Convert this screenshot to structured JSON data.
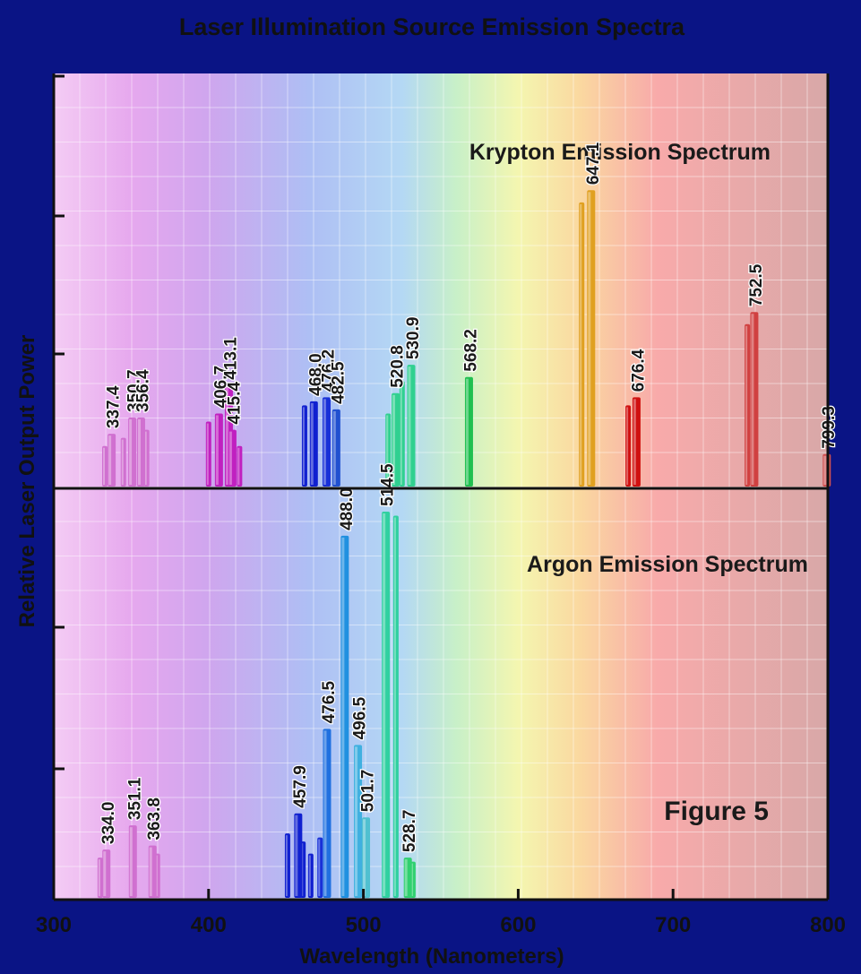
{
  "chart_data": {
    "type": "bar",
    "title": "Laser Illumination Source Emission Spectra",
    "xlabel": "Wavelength (Nanometers)",
    "ylabel": "Relative Laser Output Power",
    "xlim": [
      300,
      800
    ],
    "xticks": [
      "300",
      "400",
      "500",
      "600",
      "700",
      "800"
    ],
    "annotation": "Figure 5",
    "ylim": [
      0,
      1
    ],
    "panels": [
      {
        "name": "Krypton Emission Spectrum",
        "lines": [
          {
            "wavelength": 337.4,
            "label": "337.4",
            "power": 0.13,
            "color": "#d070d0"
          },
          {
            "wavelength": 350.7,
            "label": "350.7",
            "power": 0.17,
            "color": "#d070d0"
          },
          {
            "wavelength": 356.4,
            "label": "356.4",
            "power": 0.17,
            "color": "#d070d0"
          },
          {
            "wavelength": 406.7,
            "label": "406.7",
            "power": 0.18,
            "color": "#c020c0"
          },
          {
            "wavelength": 413.1,
            "label": "413.1",
            "power": 0.25,
            "color": "#c020c0"
          },
          {
            "wavelength": 415.4,
            "label": "415.4",
            "power": 0.14,
            "color": "#c020c0"
          },
          {
            "wavelength": 468.0,
            "label": "468.0",
            "power": 0.21,
            "color": "#1020d0"
          },
          {
            "wavelength": 476.2,
            "label": "476.2",
            "power": 0.22,
            "color": "#1830d8"
          },
          {
            "wavelength": 482.5,
            "label": "482.5",
            "power": 0.19,
            "color": "#2050d0"
          },
          {
            "wavelength": 520.8,
            "label": "520.8",
            "power": 0.23,
            "color": "#30d090"
          },
          {
            "wavelength": 530.9,
            "label": "530.9",
            "power": 0.3,
            "color": "#30d090"
          },
          {
            "wavelength": 568.2,
            "label": "568.2",
            "power": 0.27,
            "color": "#20c050"
          },
          {
            "wavelength": 647.1,
            "label": "647.1",
            "power": 0.73,
            "color": "#e0a020"
          },
          {
            "wavelength": 676.4,
            "label": "676.4",
            "power": 0.22,
            "color": "#d01010"
          },
          {
            "wavelength": 752.5,
            "label": "752.5",
            "power": 0.43,
            "color": "#d04040"
          },
          {
            "wavelength": 799.3,
            "label": "799.3",
            "power": 0.08,
            "color": "#d05050"
          }
        ],
        "unlabeled": [
          {
            "wavelength": 333.0,
            "power": 0.1,
            "color": "#d070d0"
          },
          {
            "wavelength": 345.0,
            "power": 0.12,
            "color": "#d070d0"
          },
          {
            "wavelength": 360.0,
            "power": 0.14,
            "color": "#d070d0"
          },
          {
            "wavelength": 400.0,
            "power": 0.16,
            "color": "#c020c0"
          },
          {
            "wavelength": 420.0,
            "power": 0.1,
            "color": "#c020c0"
          },
          {
            "wavelength": 462.0,
            "power": 0.2,
            "color": "#1020d0"
          },
          {
            "wavelength": 516.0,
            "power": 0.18,
            "color": "#30d090"
          },
          {
            "wavelength": 525.0,
            "power": 0.26,
            "color": "#30d090"
          },
          {
            "wavelength": 641.0,
            "power": 0.7,
            "color": "#e0a020"
          },
          {
            "wavelength": 671.0,
            "power": 0.2,
            "color": "#d01010"
          },
          {
            "wavelength": 748.0,
            "power": 0.4,
            "color": "#d04040"
          }
        ]
      },
      {
        "name": "Argon Emission Spectrum",
        "lines": [
          {
            "wavelength": 334.0,
            "label": "334.0",
            "power": 0.12,
            "color": "#d070d0"
          },
          {
            "wavelength": 351.1,
            "label": "351.1",
            "power": 0.18,
            "color": "#d070d0"
          },
          {
            "wavelength": 363.8,
            "label": "363.8",
            "power": 0.13,
            "color": "#d070d0"
          },
          {
            "wavelength": 457.9,
            "label": "457.9",
            "power": 0.21,
            "color": "#1020d0"
          },
          {
            "wavelength": 476.5,
            "label": "476.5",
            "power": 0.42,
            "color": "#2070e0"
          },
          {
            "wavelength": 488.0,
            "label": "488.0",
            "power": 0.9,
            "color": "#2090e0"
          },
          {
            "wavelength": 496.5,
            "label": "496.5",
            "power": 0.38,
            "color": "#40b0e0"
          },
          {
            "wavelength": 501.7,
            "label": "501.7",
            "power": 0.2,
            "color": "#50c0d0"
          },
          {
            "wavelength": 514.5,
            "label": "514.5",
            "power": 0.96,
            "color": "#30d0a0"
          },
          {
            "wavelength": 528.7,
            "label": "528.7",
            "power": 0.1,
            "color": "#30d070"
          }
        ],
        "unlabeled": [
          {
            "wavelength": 330.0,
            "power": 0.1,
            "color": "#d070d0"
          },
          {
            "wavelength": 367.0,
            "power": 0.11,
            "color": "#d070d0"
          },
          {
            "wavelength": 451.0,
            "power": 0.16,
            "color": "#1020d0"
          },
          {
            "wavelength": 461.0,
            "power": 0.14,
            "color": "#1020d0"
          },
          {
            "wavelength": 466.0,
            "power": 0.11,
            "color": "#1020d0"
          },
          {
            "wavelength": 472.0,
            "power": 0.15,
            "color": "#1830d8"
          },
          {
            "wavelength": 521.0,
            "power": 0.95,
            "color": "#30d0a0"
          },
          {
            "wavelength": 532.0,
            "power": 0.09,
            "color": "#30d070"
          }
        ]
      }
    ]
  }
}
